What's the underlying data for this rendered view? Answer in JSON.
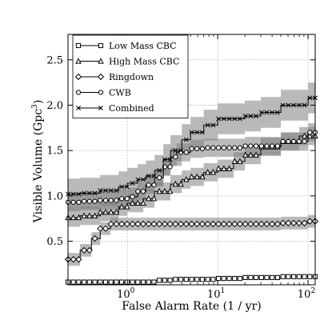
{
  "chart_data": {
    "type": "line",
    "xlabel": "False Alarm Rate (1 / yr)",
    "ylabel": "Visible Volume (Gpc",
    "ylabel_unit_sup": "3",
    "ylabel_close": ")",
    "xscale": "log",
    "xlim": [
      0.22,
      120
    ],
    "ylim": [
      0.02,
      2.78
    ],
    "grid": true,
    "legend_position": "top-left",
    "x_ticks": [
      {
        "value": 1,
        "base": "10",
        "exp": "0"
      },
      {
        "value": 10,
        "base": "10",
        "exp": "1"
      },
      {
        "value": 100,
        "base": "10",
        "exp": "2"
      }
    ],
    "y_ticks": [
      {
        "value": 0.5,
        "label": "0.5"
      },
      {
        "value": 1.0,
        "label": "1.0"
      },
      {
        "value": 1.5,
        "label": "1.5"
      },
      {
        "value": 2.0,
        "label": "2.0"
      },
      {
        "value": 2.5,
        "label": "2.5"
      }
    ],
    "series": [
      {
        "name": "Low Mass CBC",
        "marker": "square",
        "band": 0.0,
        "x": [
          0.22,
          0.3,
          0.5,
          1,
          1.5,
          2,
          3,
          5,
          10,
          20,
          50,
          120
        ],
        "y": [
          0.05,
          0.05,
          0.05,
          0.05,
          0.05,
          0.07,
          0.08,
          0.08,
          0.09,
          0.1,
          0.11,
          0.11
        ]
      },
      {
        "name": "High Mass CBC",
        "marker": "triangle",
        "band": 0.1,
        "x": [
          0.22,
          0.3,
          0.5,
          0.8,
          1,
          1.5,
          2,
          3,
          4,
          5,
          7,
          10,
          15,
          20,
          30,
          50,
          80,
          120
        ],
        "y": [
          0.76,
          0.78,
          0.82,
          0.88,
          0.92,
          0.97,
          1.05,
          1.13,
          1.18,
          1.21,
          1.26,
          1.3,
          1.38,
          1.45,
          1.54,
          1.6,
          1.66,
          1.72
        ]
      },
      {
        "name": "Ringdown",
        "marker": "diamond",
        "band": 0.07,
        "x": [
          0.22,
          0.3,
          0.4,
          0.5,
          0.65,
          0.8,
          1,
          2,
          5,
          10,
          20,
          50,
          100,
          120
        ],
        "y": [
          0.3,
          0.4,
          0.53,
          0.64,
          0.69,
          0.69,
          0.69,
          0.69,
          0.69,
          0.69,
          0.69,
          0.7,
          0.72,
          0.74
        ]
      },
      {
        "name": "CWB",
        "marker": "circle",
        "band": 0.1,
        "x": [
          0.22,
          0.3,
          0.5,
          0.8,
          1,
          1.3,
          1.6,
          2,
          2.5,
          3,
          3.5,
          5,
          7,
          10,
          20,
          50,
          100,
          120
        ],
        "y": [
          0.93,
          0.94,
          0.95,
          0.97,
          0.99,
          1.05,
          1.12,
          1.2,
          1.32,
          1.43,
          1.48,
          1.52,
          1.53,
          1.53,
          1.55,
          1.6,
          1.7,
          1.73
        ]
      },
      {
        "name": "Combined",
        "marker": "cross",
        "band": 0.17,
        "x": [
          0.22,
          0.3,
          0.5,
          0.8,
          1,
          1.3,
          1.6,
          2,
          2.5,
          3,
          4,
          5,
          7,
          10,
          20,
          30,
          50,
          100,
          120
        ],
        "y": [
          1.02,
          1.03,
          1.06,
          1.1,
          1.14,
          1.18,
          1.22,
          1.28,
          1.4,
          1.5,
          1.62,
          1.7,
          1.78,
          1.85,
          1.88,
          1.92,
          2.0,
          2.08,
          2.1
        ]
      }
    ]
  }
}
